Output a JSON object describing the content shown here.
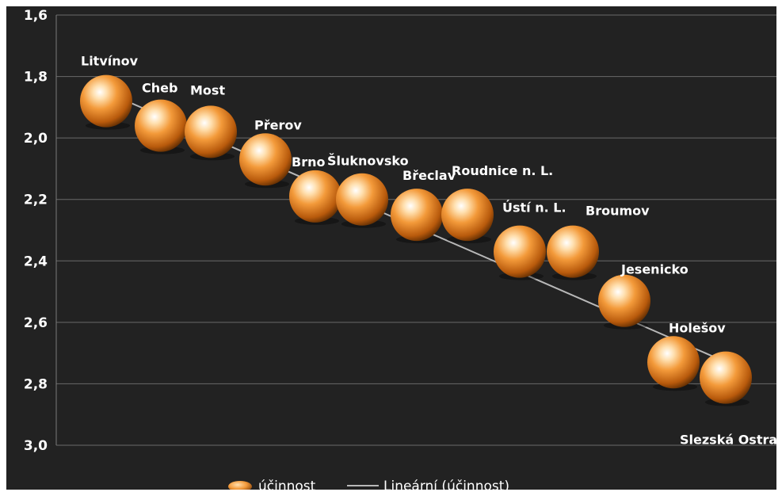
{
  "chart_data": {
    "type": "scatter",
    "title": "",
    "xlabel": "",
    "ylabel": "",
    "ylim": [
      1.6,
      3.0
    ],
    "y_inverted": true,
    "y_ticks": [
      "1,6",
      "1,8",
      "2,0",
      "2,2",
      "2,4",
      "2,6",
      "2,8",
      "3,0"
    ],
    "grid": true,
    "legend": "bottom",
    "series": [
      {
        "name": "účinnost",
        "marker": "sphere",
        "color": "#e8862a",
        "points": [
          {
            "label": "Litvínov",
            "y": 1.88
          },
          {
            "label": "Cheb",
            "y": 1.96
          },
          {
            "label": "Most",
            "y": 1.98
          },
          {
            "label": "Přerov",
            "y": 2.07
          },
          {
            "label": "Brno",
            "y": 2.19
          },
          {
            "label": "Šluknovsko",
            "y": 2.2
          },
          {
            "label": "Břeclav",
            "y": 2.25
          },
          {
            "label": "Roudnice n. L.",
            "y": 2.25
          },
          {
            "label": "Ústí n. L.",
            "y": 2.37
          },
          {
            "label": "Broumov",
            "y": 2.37
          },
          {
            "label": "Jesenicko",
            "y": 2.53
          },
          {
            "label": "Holešov",
            "y": 2.73
          },
          {
            "label": "Slezská Ostrava",
            "y": 2.78
          }
        ]
      },
      {
        "name": "Lineární (účinnost)",
        "type": "trendline",
        "color": "#b8b8b8",
        "y_start": 1.86,
        "y_end": 2.72
      }
    ],
    "background": "#222222",
    "gridline_color": "#6a6a6a",
    "text_color": "#ffffff"
  }
}
